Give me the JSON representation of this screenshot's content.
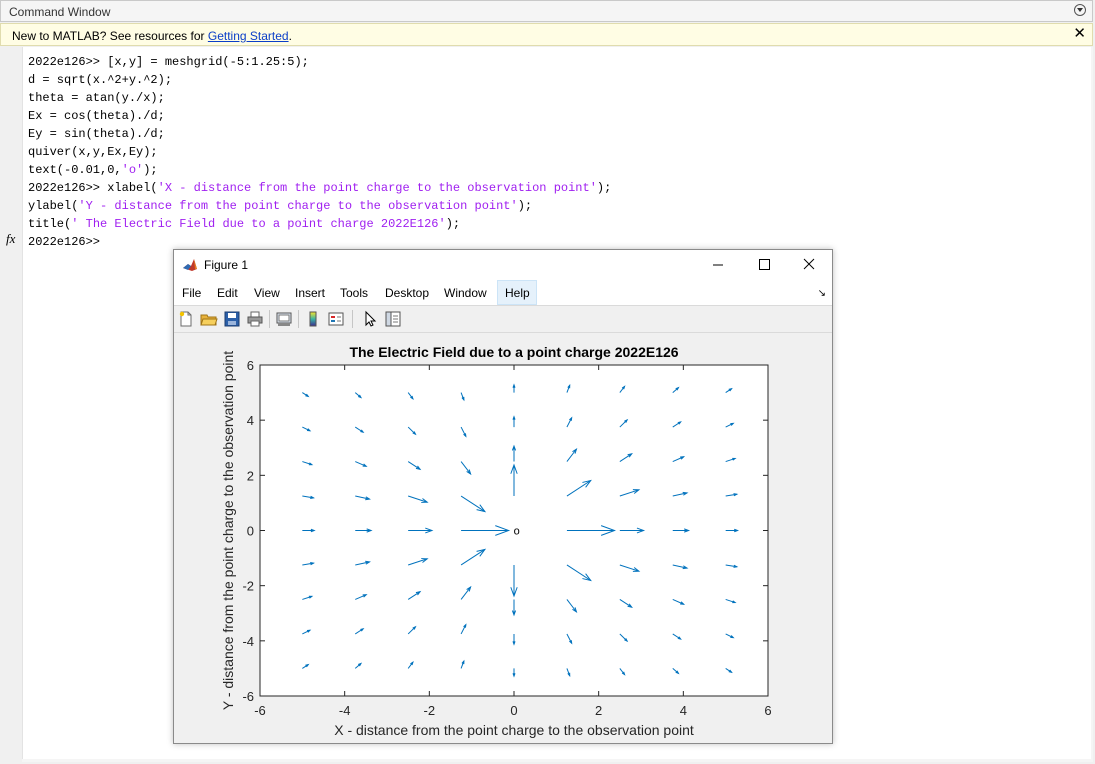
{
  "command_window": {
    "title": "Command Window",
    "banner_text": "New to MATLAB? See resources for ",
    "banner_link": "Getting Started",
    "banner_end": ".",
    "fx_label": "fx",
    "lines": [
      {
        "text": "2022e126>> [x,y] = meshgrid(-5:1.25:5);"
      },
      {
        "text": "d = sqrt(x.^2+y.^2);"
      },
      {
        "text": "theta = atan(y./x);"
      },
      {
        "text": "Ex = cos(theta)./d;"
      },
      {
        "text": "Ey = sin(theta)./d;"
      },
      {
        "text": "quiver(x,y,Ex,Ey);"
      },
      {
        "pre": "text(-0.01,0,",
        "str": "'o'",
        "post": ");"
      },
      {
        "pre": "2022e126>> xlabel(",
        "str": "'X - distance from the point charge to the observation point'",
        "post": ");"
      },
      {
        "pre": "ylabel(",
        "str": "'Y - distance from the point charge to the observation point'",
        "post": ");"
      },
      {
        "pre": "title(",
        "str": "' The Electric Field due to a point charge 2022E126'",
        "post": ");"
      },
      {
        "text": "2022e126>> "
      }
    ]
  },
  "figure": {
    "window_title": "Figure 1",
    "menu": [
      "File",
      "Edit",
      "View",
      "Insert",
      "Tools",
      "Desktop",
      "Window",
      "Help"
    ],
    "toolbar_icons": [
      "new-figure-icon",
      "open-file-icon",
      "save-icon",
      "print-icon",
      "link-plot-icon",
      "insert-colorbar-icon",
      "insert-legend-icon",
      "edit-plot-arrow-icon",
      "property-inspector-icon"
    ]
  },
  "chart_data": {
    "type": "quiver",
    "title": "The Electric Field due to a point charge 2022E126",
    "xlabel": "X - distance from the point charge to the observation point",
    "ylabel": "Y - distance from the point charge to the observation point",
    "xlim": [
      -6,
      6
    ],
    "ylim": [
      -6,
      6
    ],
    "xticks": [
      "-6",
      "-4",
      "-2",
      "0",
      "2",
      "4",
      "6"
    ],
    "yticks": [
      "-6",
      "-4",
      "-2",
      "0",
      "2",
      "4",
      "6"
    ],
    "grid_x": [
      -5,
      -3.75,
      -2.5,
      -1.25,
      0,
      1.25,
      2.5,
      3.75,
      5
    ],
    "grid_y": [
      -5,
      -3.75,
      -2.5,
      -1.25,
      0,
      1.25,
      2.5,
      3.75,
      5
    ],
    "u": "cos(atan(y/x))/sqrt(x^2+y^2)",
    "v": "sin(atan(y/x))/sqrt(x^2+y^2)",
    "arrow_color": "#0072bd",
    "annotation": {
      "text": "o",
      "x": -0.01,
      "y": 0
    }
  }
}
